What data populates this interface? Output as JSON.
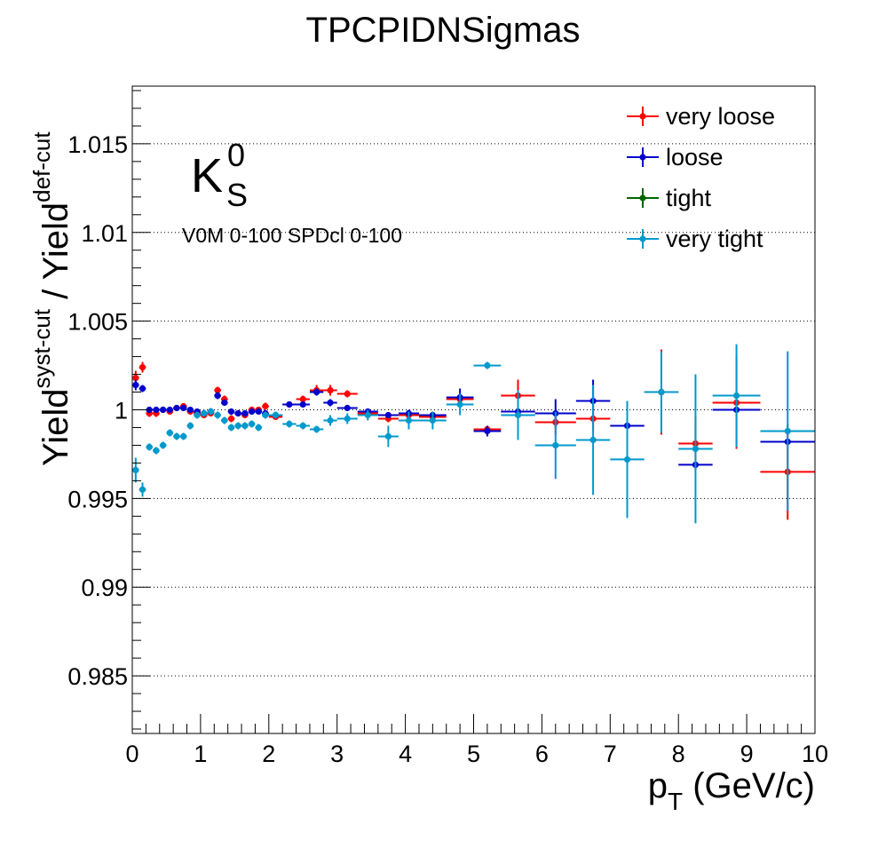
{
  "chart_data": {
    "type": "scatter",
    "title": "TPCPIDNSigmas",
    "xlabel": {
      "main": "p",
      "sub": "T",
      "rest": " (GeV/c)"
    },
    "ylabel": {
      "a": "Yield",
      "a_sup": "syst-cut",
      "mid": " / Yield",
      "b_sup": "def-cut"
    },
    "xlim": [
      0,
      10
    ],
    "ylim": [
      0.98175,
      1.01825
    ],
    "x_ticks": [
      "0",
      "1",
      "2",
      "3",
      "4",
      "5",
      "6",
      "7",
      "8",
      "9",
      "10"
    ],
    "y_ticks": [
      "0.985",
      "0.99",
      "0.995",
      "1",
      "1.005",
      "1.01",
      "1.015"
    ],
    "grid": "horizontal-dotted",
    "legend_position": "top-right",
    "annotation": {
      "particle": "K",
      "sup": "0",
      "sub": "S",
      "selection": "V0M 0-100 SPDcl 0-100"
    },
    "series": [
      {
        "name": "very loose",
        "color": "#ff0000",
        "points": [
          {
            "x": 0.05,
            "y": 1.0018,
            "ex": 0.05,
            "ey": 0.0004
          },
          {
            "x": 0.15,
            "y": 1.0024,
            "ex": 0.05,
            "ey": 0.0003
          },
          {
            "x": 0.25,
            "y": 0.9998,
            "ex": 0.05,
            "ey": 0.0002
          },
          {
            "x": 0.35,
            "y": 0.9998,
            "ex": 0.05,
            "ey": 0.0002
          },
          {
            "x": 0.45,
            "y": 1.0,
            "ex": 0.05,
            "ey": 0.0001
          },
          {
            "x": 0.55,
            "y": 0.9999,
            "ex": 0.05,
            "ey": 0.0001
          },
          {
            "x": 0.65,
            "y": 1.0001,
            "ex": 0.05,
            "ey": 0.0001
          },
          {
            "x": 0.75,
            "y": 1.0002,
            "ex": 0.05,
            "ey": 0.0001
          },
          {
            "x": 0.85,
            "y": 0.9999,
            "ex": 0.05,
            "ey": 0.0001
          },
          {
            "x": 0.95,
            "y": 0.9998,
            "ex": 0.05,
            "ey": 0.0001
          },
          {
            "x": 1.05,
            "y": 0.9997,
            "ex": 0.05,
            "ey": 0.0001
          },
          {
            "x": 1.15,
            "y": 0.9998,
            "ex": 0.05,
            "ey": 0.0001
          },
          {
            "x": 1.25,
            "y": 1.0011,
            "ex": 0.05,
            "ey": 0.0002
          },
          {
            "x": 1.35,
            "y": 1.0006,
            "ex": 0.05,
            "ey": 0.0002
          },
          {
            "x": 1.45,
            "y": 0.9995,
            "ex": 0.05,
            "ey": 0.0002
          },
          {
            "x": 1.55,
            "y": 0.9998,
            "ex": 0.05,
            "ey": 0.0001
          },
          {
            "x": 1.65,
            "y": 0.9997,
            "ex": 0.05,
            "ey": 0.0001
          },
          {
            "x": 1.75,
            "y": 1.0,
            "ex": 0.05,
            "ey": 0.0001
          },
          {
            "x": 1.85,
            "y": 1.0,
            "ex": 0.05,
            "ey": 0.0001
          },
          {
            "x": 1.95,
            "y": 1.0002,
            "ex": 0.05,
            "ey": 0.0002
          },
          {
            "x": 2.1,
            "y": 0.9996,
            "ex": 0.1,
            "ey": 0.0001
          },
          {
            "x": 2.3,
            "y": 1.0003,
            "ex": 0.1,
            "ey": 0.0001
          },
          {
            "x": 2.5,
            "y": 1.0006,
            "ex": 0.1,
            "ey": 0.0002
          },
          {
            "x": 2.7,
            "y": 1.0011,
            "ex": 0.1,
            "ey": 0.0003
          },
          {
            "x": 2.9,
            "y": 1.0011,
            "ex": 0.1,
            "ey": 0.0003
          },
          {
            "x": 3.15,
            "y": 1.0009,
            "ex": 0.15,
            "ey": 0.0002
          },
          {
            "x": 3.45,
            "y": 0.9998,
            "ex": 0.15,
            "ey": 0.0002
          },
          {
            "x": 3.75,
            "y": 0.9995,
            "ex": 0.15,
            "ey": 0.0002
          },
          {
            "x": 4.05,
            "y": 0.9997,
            "ex": 0.15,
            "ey": 0.0002
          },
          {
            "x": 4.4,
            "y": 0.9996,
            "ex": 0.2,
            "ey": 0.0002
          },
          {
            "x": 4.8,
            "y": 1.0006,
            "ex": 0.2,
            "ey": 0.0003
          },
          {
            "x": 5.2,
            "y": 0.9989,
            "ex": 0.2,
            "ey": 0.0002
          },
          {
            "x": 5.65,
            "y": 1.0008,
            "ex": 0.25,
            "ey": 0.0009
          },
          {
            "x": 6.2,
            "y": 0.9993,
            "ex": 0.3,
            "ey": 0.0007
          },
          {
            "x": 6.75,
            "y": 0.9995,
            "ex": 0.25,
            "ey": 0.0007
          },
          {
            "x": 7.75,
            "y": 1.001,
            "ex": 0.25,
            "ey": 0.0024
          },
          {
            "x": 8.25,
            "y": 0.9981,
            "ex": 0.25,
            "ey": 0.0015
          },
          {
            "x": 8.85,
            "y": 1.0004,
            "ex": 0.35,
            "ey": 0.0026
          },
          {
            "x": 9.6,
            "y": 0.9965,
            "ex": 0.4,
            "ey": 0.0027
          }
        ]
      },
      {
        "name": "loose",
        "color": "#0000cc",
        "points": [
          {
            "x": 0.05,
            "y": 1.0014,
            "ex": 0.05,
            "ey": 0.0003
          },
          {
            "x": 0.15,
            "y": 1.0012,
            "ex": 0.05,
            "ey": 0.0002
          },
          {
            "x": 0.25,
            "y": 1.0,
            "ex": 0.05,
            "ey": 0.0001
          },
          {
            "x": 0.35,
            "y": 1.0,
            "ex": 0.05,
            "ey": 0.0001
          },
          {
            "x": 0.45,
            "y": 1.0,
            "ex": 0.05,
            "ey": 0.0001
          },
          {
            "x": 0.55,
            "y": 1.0,
            "ex": 0.05,
            "ey": 0.0001
          },
          {
            "x": 0.65,
            "y": 1.0001,
            "ex": 0.05,
            "ey": 0.0001
          },
          {
            "x": 0.75,
            "y": 1.0001,
            "ex": 0.05,
            "ey": 0.0001
          },
          {
            "x": 0.85,
            "y": 1.0,
            "ex": 0.05,
            "ey": 0.0001
          },
          {
            "x": 0.95,
            "y": 0.9999,
            "ex": 0.05,
            "ey": 0.0001
          },
          {
            "x": 1.05,
            "y": 0.9998,
            "ex": 0.05,
            "ey": 0.0001
          },
          {
            "x": 1.15,
            "y": 0.9999,
            "ex": 0.05,
            "ey": 0.0001
          },
          {
            "x": 1.25,
            "y": 1.0008,
            "ex": 0.05,
            "ey": 0.0002
          },
          {
            "x": 1.35,
            "y": 1.0004,
            "ex": 0.05,
            "ey": 0.0001
          },
          {
            "x": 1.45,
            "y": 0.9999,
            "ex": 0.05,
            "ey": 0.0001
          },
          {
            "x": 1.55,
            "y": 0.9998,
            "ex": 0.05,
            "ey": 0.0001
          },
          {
            "x": 1.65,
            "y": 0.9998,
            "ex": 0.05,
            "ey": 0.0001
          },
          {
            "x": 1.75,
            "y": 0.9999,
            "ex": 0.05,
            "ey": 0.0001
          },
          {
            "x": 1.85,
            "y": 0.9999,
            "ex": 0.05,
            "ey": 0.0001
          },
          {
            "x": 1.95,
            "y": 0.9998,
            "ex": 0.05,
            "ey": 0.0001
          },
          {
            "x": 2.1,
            "y": 0.9997,
            "ex": 0.1,
            "ey": 0.0001
          },
          {
            "x": 2.3,
            "y": 1.0003,
            "ex": 0.1,
            "ey": 0.0001
          },
          {
            "x": 2.5,
            "y": 1.0003,
            "ex": 0.1,
            "ey": 0.0001
          },
          {
            "x": 2.7,
            "y": 1.001,
            "ex": 0.1,
            "ey": 0.0002
          },
          {
            "x": 2.9,
            "y": 1.0004,
            "ex": 0.1,
            "ey": 0.0002
          },
          {
            "x": 3.15,
            "y": 1.0001,
            "ex": 0.15,
            "ey": 0.0001
          },
          {
            "x": 3.45,
            "y": 0.9999,
            "ex": 0.15,
            "ey": 0.0001
          },
          {
            "x": 3.75,
            "y": 0.9997,
            "ex": 0.15,
            "ey": 0.0001
          },
          {
            "x": 4.05,
            "y": 0.9998,
            "ex": 0.15,
            "ey": 0.0002
          },
          {
            "x": 4.4,
            "y": 0.9997,
            "ex": 0.2,
            "ey": 0.0001
          },
          {
            "x": 4.8,
            "y": 1.0007,
            "ex": 0.2,
            "ey": 0.0005
          },
          {
            "x": 5.2,
            "y": 0.9988,
            "ex": 0.2,
            "ey": 0.0003
          },
          {
            "x": 5.65,
            "y": 0.9999,
            "ex": 0.25,
            "ey": 0.0001
          },
          {
            "x": 6.2,
            "y": 0.9998,
            "ex": 0.3,
            "ey": 0.0008
          },
          {
            "x": 6.75,
            "y": 1.0005,
            "ex": 0.25,
            "ey": 0.0012
          },
          {
            "x": 7.25,
            "y": 0.9991,
            "ex": 0.25,
            "ey": 0.0001
          },
          {
            "x": 8.25,
            "y": 0.9969,
            "ex": 0.25,
            "ey": 0.0001
          },
          {
            "x": 8.85,
            "y": 1.0,
            "ex": 0.35,
            "ey": 0.0001
          },
          {
            "x": 9.6,
            "y": 0.9982,
            "ex": 0.4,
            "ey": 0.0001
          }
        ]
      },
      {
        "name": "tight",
        "color": "#006600",
        "points": []
      },
      {
        "name": "very tight",
        "color": "#0099cc",
        "points": [
          {
            "x": 0.05,
            "y": 0.9966,
            "ex": 0.05,
            "ey": 0.0007
          },
          {
            "x": 0.15,
            "y": 0.9955,
            "ex": 0.05,
            "ey": 0.0004
          },
          {
            "x": 0.25,
            "y": 0.9979,
            "ex": 0.05,
            "ey": 0.0002
          },
          {
            "x": 0.35,
            "y": 0.9977,
            "ex": 0.05,
            "ey": 0.0002
          },
          {
            "x": 0.45,
            "y": 0.998,
            "ex": 0.05,
            "ey": 0.0002
          },
          {
            "x": 0.55,
            "y": 0.9987,
            "ex": 0.05,
            "ey": 0.0002
          },
          {
            "x": 0.65,
            "y": 0.9985,
            "ex": 0.05,
            "ey": 0.0002
          },
          {
            "x": 0.75,
            "y": 0.9985,
            "ex": 0.05,
            "ey": 0.0002
          },
          {
            "x": 0.85,
            "y": 0.9991,
            "ex": 0.05,
            "ey": 0.0002
          },
          {
            "x": 0.95,
            "y": 0.9997,
            "ex": 0.05,
            "ey": 0.0002
          },
          {
            "x": 1.05,
            "y": 0.9998,
            "ex": 0.05,
            "ey": 0.0002
          },
          {
            "x": 1.15,
            "y": 0.9999,
            "ex": 0.05,
            "ey": 0.0002
          },
          {
            "x": 1.25,
            "y": 0.9997,
            "ex": 0.05,
            "ey": 0.0002
          },
          {
            "x": 1.35,
            "y": 0.9994,
            "ex": 0.05,
            "ey": 0.0002
          },
          {
            "x": 1.45,
            "y": 0.999,
            "ex": 0.05,
            "ey": 0.0002
          },
          {
            "x": 1.55,
            "y": 0.9991,
            "ex": 0.05,
            "ey": 0.0002
          },
          {
            "x": 1.65,
            "y": 0.9991,
            "ex": 0.05,
            "ey": 0.0002
          },
          {
            "x": 1.75,
            "y": 0.9992,
            "ex": 0.05,
            "ey": 0.0002
          },
          {
            "x": 1.85,
            "y": 0.999,
            "ex": 0.05,
            "ey": 0.0002
          },
          {
            "x": 1.95,
            "y": 0.9997,
            "ex": 0.05,
            "ey": 0.0002
          },
          {
            "x": 2.1,
            "y": 0.9997,
            "ex": 0.1,
            "ey": 0.0002
          },
          {
            "x": 2.3,
            "y": 0.9992,
            "ex": 0.1,
            "ey": 0.0002
          },
          {
            "x": 2.5,
            "y": 0.9991,
            "ex": 0.1,
            "ey": 0.0002
          },
          {
            "x": 2.7,
            "y": 0.9989,
            "ex": 0.1,
            "ey": 0.0002
          },
          {
            "x": 2.9,
            "y": 0.9994,
            "ex": 0.1,
            "ey": 0.0003
          },
          {
            "x": 3.15,
            "y": 0.9995,
            "ex": 0.15,
            "ey": 0.0003
          },
          {
            "x": 3.45,
            "y": 0.9997,
            "ex": 0.15,
            "ey": 0.0003
          },
          {
            "x": 3.75,
            "y": 0.9985,
            "ex": 0.15,
            "ey": 0.0006
          },
          {
            "x": 4.05,
            "y": 0.9994,
            "ex": 0.15,
            "ey": 0.0005
          },
          {
            "x": 4.4,
            "y": 0.9994,
            "ex": 0.2,
            "ey": 0.0005
          },
          {
            "x": 4.8,
            "y": 1.0003,
            "ex": 0.2,
            "ey": 0.0006
          },
          {
            "x": 5.2,
            "y": 1.0025,
            "ex": 0.2,
            "ey": 0.0002
          },
          {
            "x": 5.65,
            "y": 0.9997,
            "ex": 0.25,
            "ey": 0.0014
          },
          {
            "x": 6.2,
            "y": 0.998,
            "ex": 0.3,
            "ey": 0.0019
          },
          {
            "x": 6.75,
            "y": 0.9983,
            "ex": 0.25,
            "ey": 0.0031
          },
          {
            "x": 7.25,
            "y": 0.9972,
            "ex": 0.25,
            "ey": 0.0033
          },
          {
            "x": 7.75,
            "y": 1.001,
            "ex": 0.25,
            "ey": 0.0023
          },
          {
            "x": 8.25,
            "y": 0.9978,
            "ex": 0.25,
            "ey": 0.0042
          },
          {
            "x": 8.85,
            "y": 1.0008,
            "ex": 0.35,
            "ey": 0.0029
          },
          {
            "x": 9.6,
            "y": 0.9988,
            "ex": 0.4,
            "ey": 0.0045
          }
        ]
      }
    ]
  }
}
